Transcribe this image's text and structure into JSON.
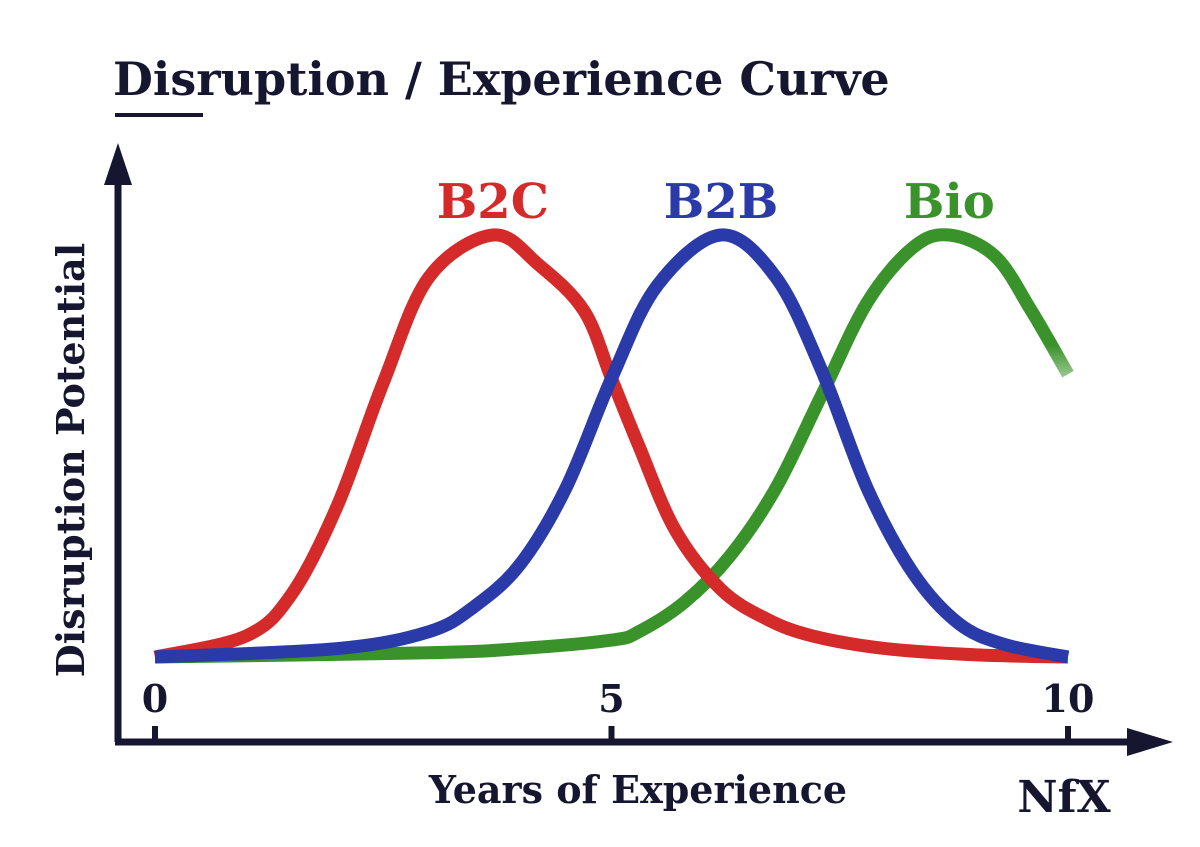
{
  "chart_data": {
    "type": "line",
    "title": "Disruption / Experience Curve",
    "xlabel": "Years of Experience",
    "ylabel": "Disruption Potential",
    "xlim": [
      0,
      10
    ],
    "ylim": [
      0,
      1
    ],
    "x_ticks": [
      "0",
      "5",
      "10"
    ],
    "grid": false,
    "legend": "labels above curve peaks",
    "series": [
      {
        "name": "B2C",
        "color": "#d42a2a",
        "points": [
          [
            0,
            0
          ],
          [
            1,
            0.05
          ],
          [
            1.5,
            0.15
          ],
          [
            2,
            0.36
          ],
          [
            2.5,
            0.65
          ],
          [
            3,
            0.9
          ],
          [
            3.7,
            1
          ],
          [
            4.2,
            0.93
          ],
          [
            4.7,
            0.82
          ],
          [
            5,
            0.66
          ],
          [
            5.3,
            0.5
          ],
          [
            5.7,
            0.3
          ],
          [
            6.2,
            0.16
          ],
          [
            6.7,
            0.09
          ],
          [
            7.2,
            0.05
          ],
          [
            8,
            0.02
          ],
          [
            9,
            0.005
          ],
          [
            10,
            0
          ]
        ]
      },
      {
        "name": "B2B",
        "color": "#2a3aa8",
        "points": [
          [
            0,
            0
          ],
          [
            2,
            0.02
          ],
          [
            3,
            0.06
          ],
          [
            3.5,
            0.12
          ],
          [
            4,
            0.22
          ],
          [
            4.5,
            0.4
          ],
          [
            5,
            0.66
          ],
          [
            5.5,
            0.88
          ],
          [
            6.2,
            1
          ],
          [
            6.8,
            0.9
          ],
          [
            7.3,
            0.68
          ],
          [
            7.8,
            0.4
          ],
          [
            8.3,
            0.2
          ],
          [
            8.8,
            0.08
          ],
          [
            9.3,
            0.03
          ],
          [
            10,
            0
          ]
        ]
      },
      {
        "name": "Bio",
        "color": "#3a922a",
        "points": [
          [
            0,
            0
          ],
          [
            3,
            0.01
          ],
          [
            4,
            0.02
          ],
          [
            5,
            0.04
          ],
          [
            5.3,
            0.06
          ],
          [
            5.8,
            0.13
          ],
          [
            6.3,
            0.24
          ],
          [
            6.8,
            0.4
          ],
          [
            7.3,
            0.62
          ],
          [
            7.8,
            0.84
          ],
          [
            8.3,
            0.97
          ],
          [
            8.7,
            1
          ],
          [
            9.2,
            0.95
          ],
          [
            9.6,
            0.82
          ],
          [
            10,
            0.67
          ]
        ]
      }
    ]
  },
  "logo": "NfX"
}
